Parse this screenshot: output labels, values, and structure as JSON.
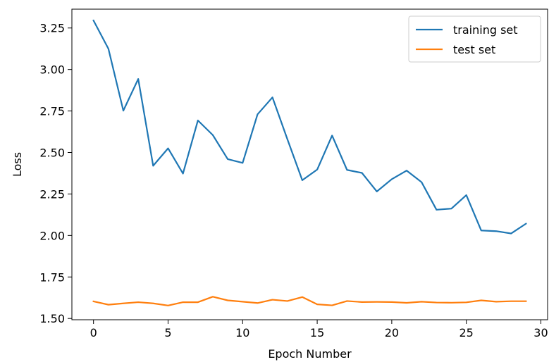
{
  "chart_data": {
    "type": "line",
    "xlabel": "Epoch Number",
    "ylabel": "Loss",
    "xlim": [
      -1.45,
      30.45
    ],
    "ylim": [
      1.4923,
      3.3635
    ],
    "xticks": [
      0,
      5,
      10,
      15,
      20,
      25,
      30
    ],
    "yticks": [
      1.5,
      1.75,
      2.0,
      2.25,
      2.5,
      2.75,
      3.0,
      3.25
    ],
    "ytick_labels": [
      "1.50",
      "1.75",
      "2.00",
      "2.25",
      "2.50",
      "2.75",
      "3.00",
      "3.25"
    ],
    "grid": false,
    "legend_position": "top-right",
    "x": [
      0,
      1,
      2,
      3,
      4,
      5,
      6,
      7,
      8,
      9,
      10,
      11,
      12,
      13,
      14,
      15,
      16,
      17,
      18,
      19,
      20,
      21,
      22,
      23,
      24,
      25,
      26,
      27,
      28,
      29
    ],
    "series": [
      {
        "name": "training set",
        "color": "#1f77b4",
        "values": [
          3.295,
          3.125,
          2.752,
          2.943,
          2.42,
          2.525,
          2.373,
          2.693,
          2.605,
          2.46,
          2.437,
          2.73,
          2.832,
          2.58,
          2.333,
          2.397,
          2.602,
          2.395,
          2.377,
          2.265,
          2.339,
          2.391,
          2.321,
          2.155,
          2.162,
          2.243,
          2.03,
          2.026,
          2.012,
          2.071
        ]
      },
      {
        "name": "test set",
        "color": "#ff7f0e",
        "values": [
          1.603,
          1.583,
          1.591,
          1.598,
          1.591,
          1.578,
          1.598,
          1.598,
          1.631,
          1.609,
          1.601,
          1.593,
          1.613,
          1.605,
          1.629,
          1.585,
          1.579,
          1.605,
          1.599,
          1.6,
          1.599,
          1.594,
          1.601,
          1.596,
          1.595,
          1.597,
          1.609,
          1.601,
          1.604,
          1.604
        ]
      }
    ]
  }
}
